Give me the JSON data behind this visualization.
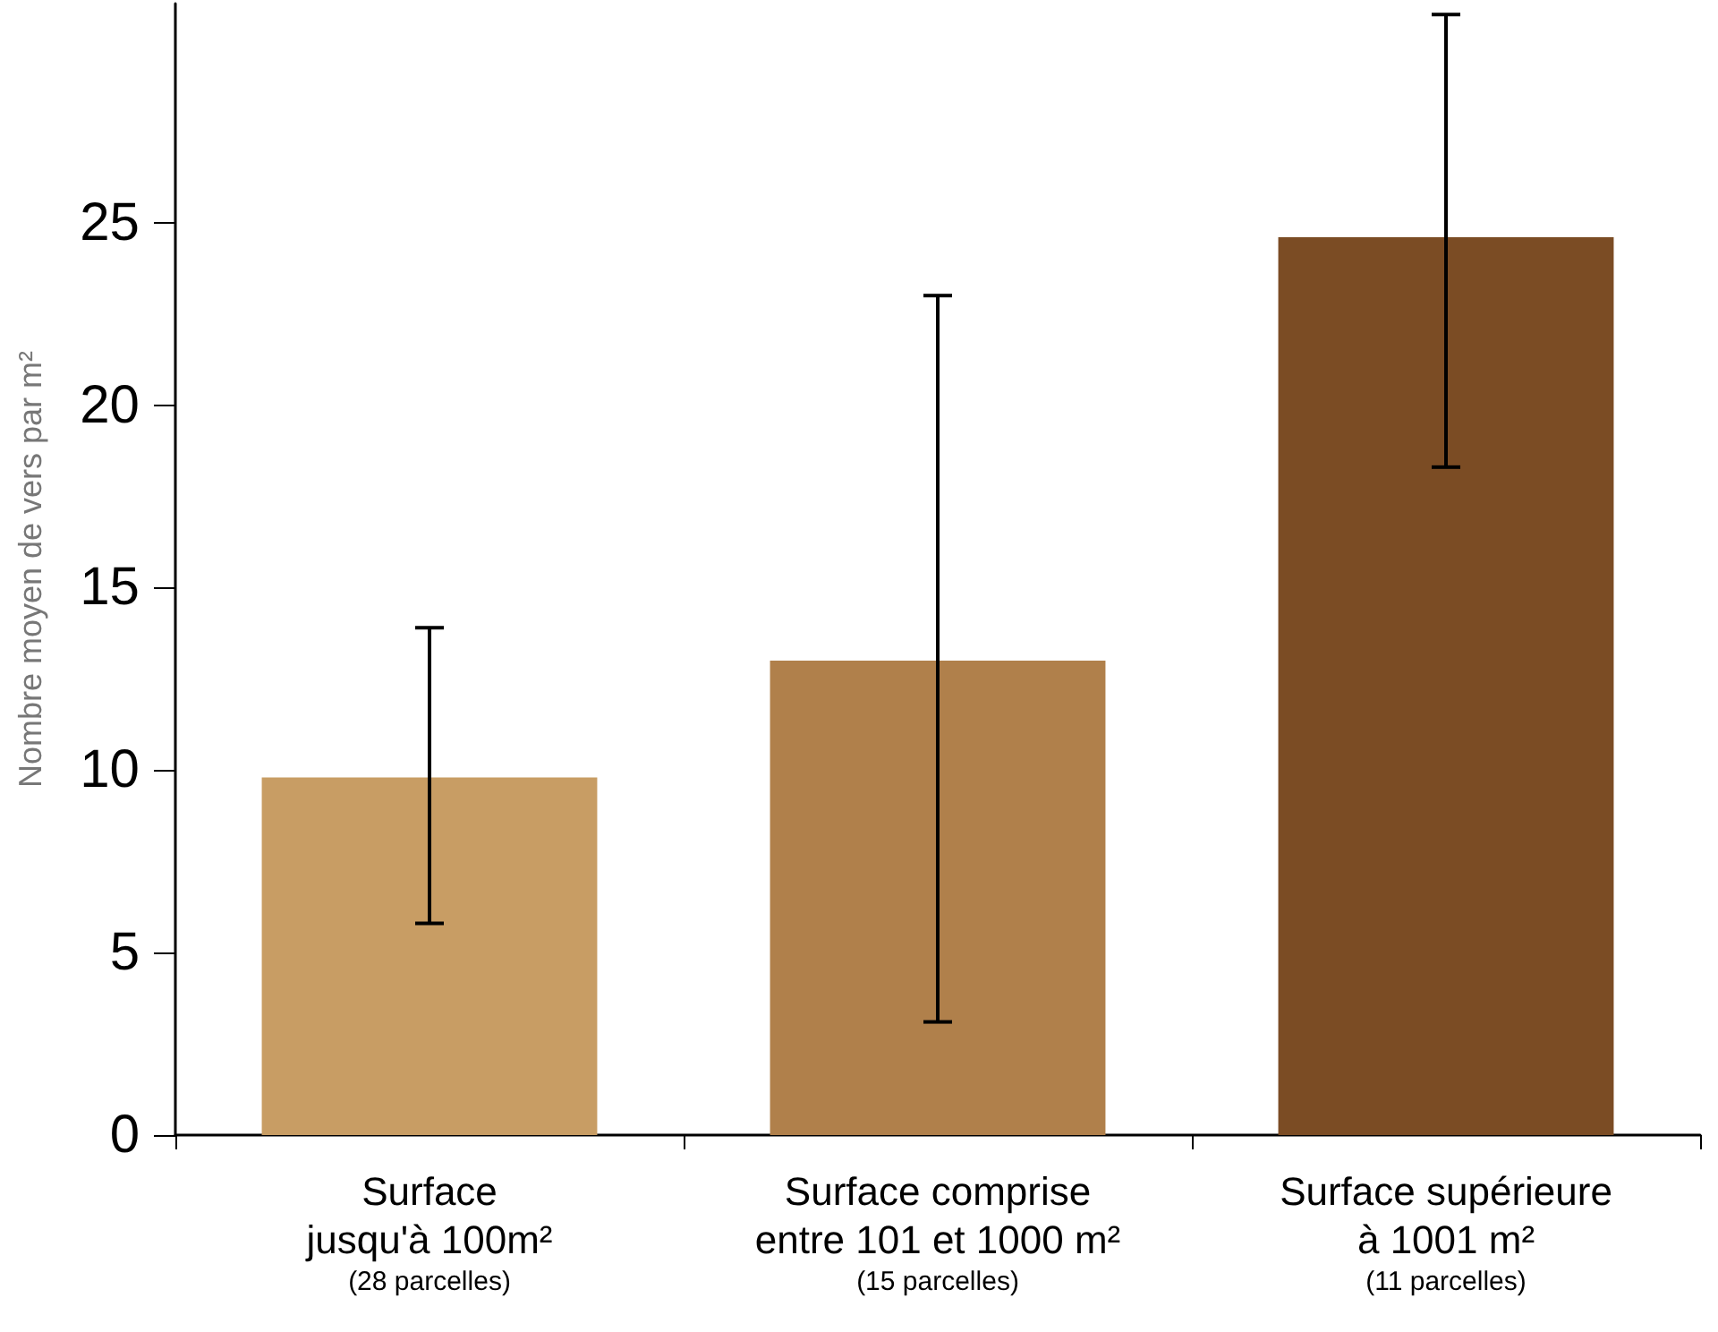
{
  "chart_data": {
    "type": "bar",
    "ylabel": "Nombre moyen de vers par m²",
    "categories": [
      "Surface\njusqu'à 100m²\n(28 parcelles)",
      "Surface comprise\nentre 101 et 1000 m²\n(15 parcelles)",
      "Surface supérieure\nà 1001 m²\n(11 parcelles)"
    ],
    "values": [
      9.8,
      13.0,
      24.6
    ],
    "colors": [
      "#c89d64",
      "#b0804b",
      "#7b4c24"
    ],
    "errors": [
      [
        5.8,
        13.9
      ],
      [
        3.1,
        23.0
      ],
      [
        18.3,
        30.7
      ]
    ],
    "ylim": [
      0,
      31
    ],
    "yticks": [
      0,
      5,
      10,
      15,
      20,
      25
    ],
    "grid": false
  }
}
